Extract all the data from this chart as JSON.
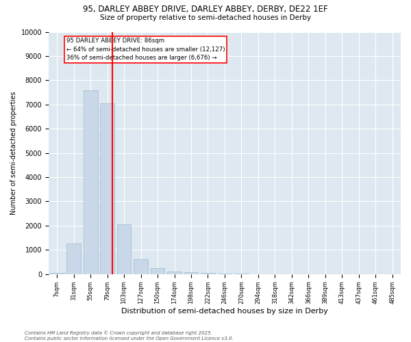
{
  "title_line1": "95, DARLEY ABBEY DRIVE, DARLEY ABBEY, DERBY, DE22 1EF",
  "title_line2": "Size of property relative to semi-detached houses in Derby",
  "xlabel": "Distribution of semi-detached houses by size in Derby",
  "ylabel": "Number of semi-detached properties",
  "categories": [
    "7sqm",
    "31sqm",
    "55sqm",
    "79sqm",
    "103sqm",
    "127sqm",
    "150sqm",
    "174sqm",
    "198sqm",
    "222sqm",
    "246sqm",
    "270sqm",
    "294sqm",
    "318sqm",
    "342sqm",
    "366sqm",
    "389sqm",
    "413sqm",
    "437sqm",
    "461sqm",
    "485sqm"
  ],
  "values": [
    50,
    1250,
    7600,
    7050,
    2050,
    600,
    250,
    100,
    75,
    50,
    25,
    10,
    5,
    3,
    2,
    1,
    1,
    0,
    0,
    0,
    0
  ],
  "bar_color": "#c8d8e8",
  "bar_edge_color": "#a0b8cc",
  "annotation_text_line1": "95 DARLEY ABBEY DRIVE: 86sqm",
  "annotation_text_line2": "← 64% of semi-detached houses are smaller (12,127)",
  "annotation_text_line3": "36% of semi-detached houses are larger (6,676) →",
  "ylim": [
    0,
    10000
  ],
  "yticks": [
    0,
    1000,
    2000,
    3000,
    4000,
    5000,
    6000,
    7000,
    8000,
    9000,
    10000
  ],
  "footnote1": "Contains HM Land Registry data © Crown copyright and database right 2025.",
  "footnote2": "Contains public sector information licensed under the Open Government Licence v3.0.",
  "background_color": "#dde8f0"
}
